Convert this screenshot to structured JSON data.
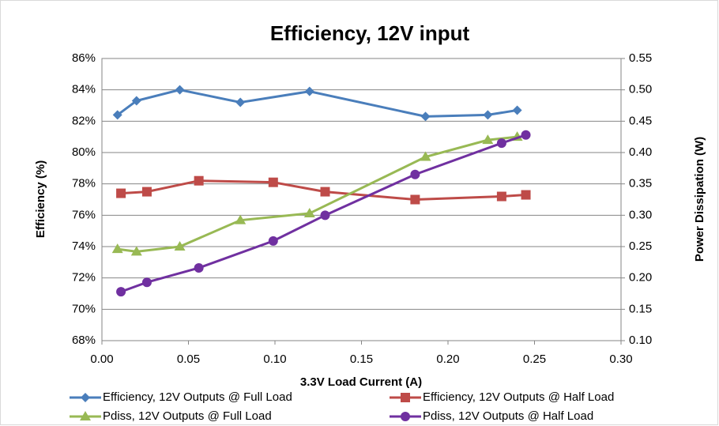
{
  "chart_data": {
    "type": "line",
    "title": "Efficiency, 12V input",
    "x_label": "3.3V Load Current (A)",
    "y_label": "Efficiency (%)",
    "y2_label": "Power Dissipation (W)",
    "xlim": [
      0,
      0.3
    ],
    "xticks": [
      {
        "value": 0,
        "label": "0.00"
      },
      {
        "value": 0.05,
        "label": "0.05"
      },
      {
        "value": 0.1,
        "label": "0.10"
      },
      {
        "value": 0.15,
        "label": "0.15"
      },
      {
        "value": 0.2,
        "label": "0.20"
      },
      {
        "value": 0.25,
        "label": "0.25"
      },
      {
        "value": 0.3,
        "label": "0.30"
      }
    ],
    "ylim": [
      68,
      86
    ],
    "yticks": [
      {
        "value": 68,
        "label": "68%"
      },
      {
        "value": 70,
        "label": "70%"
      },
      {
        "value": 72,
        "label": "72%"
      },
      {
        "value": 74,
        "label": "74%"
      },
      {
        "value": 76,
        "label": "76%"
      },
      {
        "value": 78,
        "label": "78%"
      },
      {
        "value": 80,
        "label": "80%"
      },
      {
        "value": 82,
        "label": "82%"
      },
      {
        "value": 84,
        "label": "84%"
      },
      {
        "value": 86,
        "label": "86%"
      }
    ],
    "y2lim": [
      0.1,
      0.55
    ],
    "y2ticks": [
      {
        "value": 0.1,
        "label": "0.10"
      },
      {
        "value": 0.15,
        "label": "0.15"
      },
      {
        "value": 0.2,
        "label": "0.20"
      },
      {
        "value": 0.25,
        "label": "0.25"
      },
      {
        "value": 0.3,
        "label": "0.30"
      },
      {
        "value": 0.35,
        "label": "0.35"
      },
      {
        "value": 0.4,
        "label": "0.40"
      },
      {
        "value": 0.45,
        "label": "0.45"
      },
      {
        "value": 0.5,
        "label": "0.50"
      },
      {
        "value": 0.55,
        "label": "0.55"
      }
    ],
    "grid": true,
    "legend": "bottom",
    "series": [
      {
        "name": "Efficiency, 12V Outputs @ Full Load",
        "color": "#4a7ebb",
        "marker": "diamond",
        "axis": "y",
        "x": [
          0.009,
          0.02,
          0.045,
          0.08,
          0.12,
          0.187,
          0.223,
          0.24
        ],
        "values": [
          82.4,
          83.3,
          84.0,
          83.2,
          83.9,
          82.3,
          82.4,
          82.7
        ]
      },
      {
        "name": "Efficiency, 12V Outputs @ Half Load",
        "color": "#be4b48",
        "marker": "square",
        "axis": "y",
        "x": [
          0.011,
          0.026,
          0.056,
          0.099,
          0.129,
          0.181,
          0.231,
          0.245
        ],
        "values": [
          77.4,
          77.5,
          78.2,
          78.1,
          77.5,
          77.0,
          77.2,
          77.3
        ]
      },
      {
        "name": "Pdiss, 12V Outputs @ Full Load",
        "color": "#98b954",
        "marker": "triangle",
        "axis": "y2",
        "x": [
          0.009,
          0.02,
          0.045,
          0.08,
          0.12,
          0.187,
          0.223,
          0.24
        ],
        "values": [
          0.246,
          0.242,
          0.25,
          0.292,
          0.303,
          0.393,
          0.42,
          0.425
        ]
      },
      {
        "name": "Pdiss, 12V Outputs @ Half Load",
        "color": "#7030a0",
        "marker": "circle",
        "axis": "y2",
        "x": [
          0.011,
          0.026,
          0.056,
          0.099,
          0.129,
          0.181,
          0.231,
          0.245
        ],
        "values": [
          0.178,
          0.193,
          0.216,
          0.259,
          0.3,
          0.365,
          0.415,
          0.428
        ]
      }
    ]
  }
}
